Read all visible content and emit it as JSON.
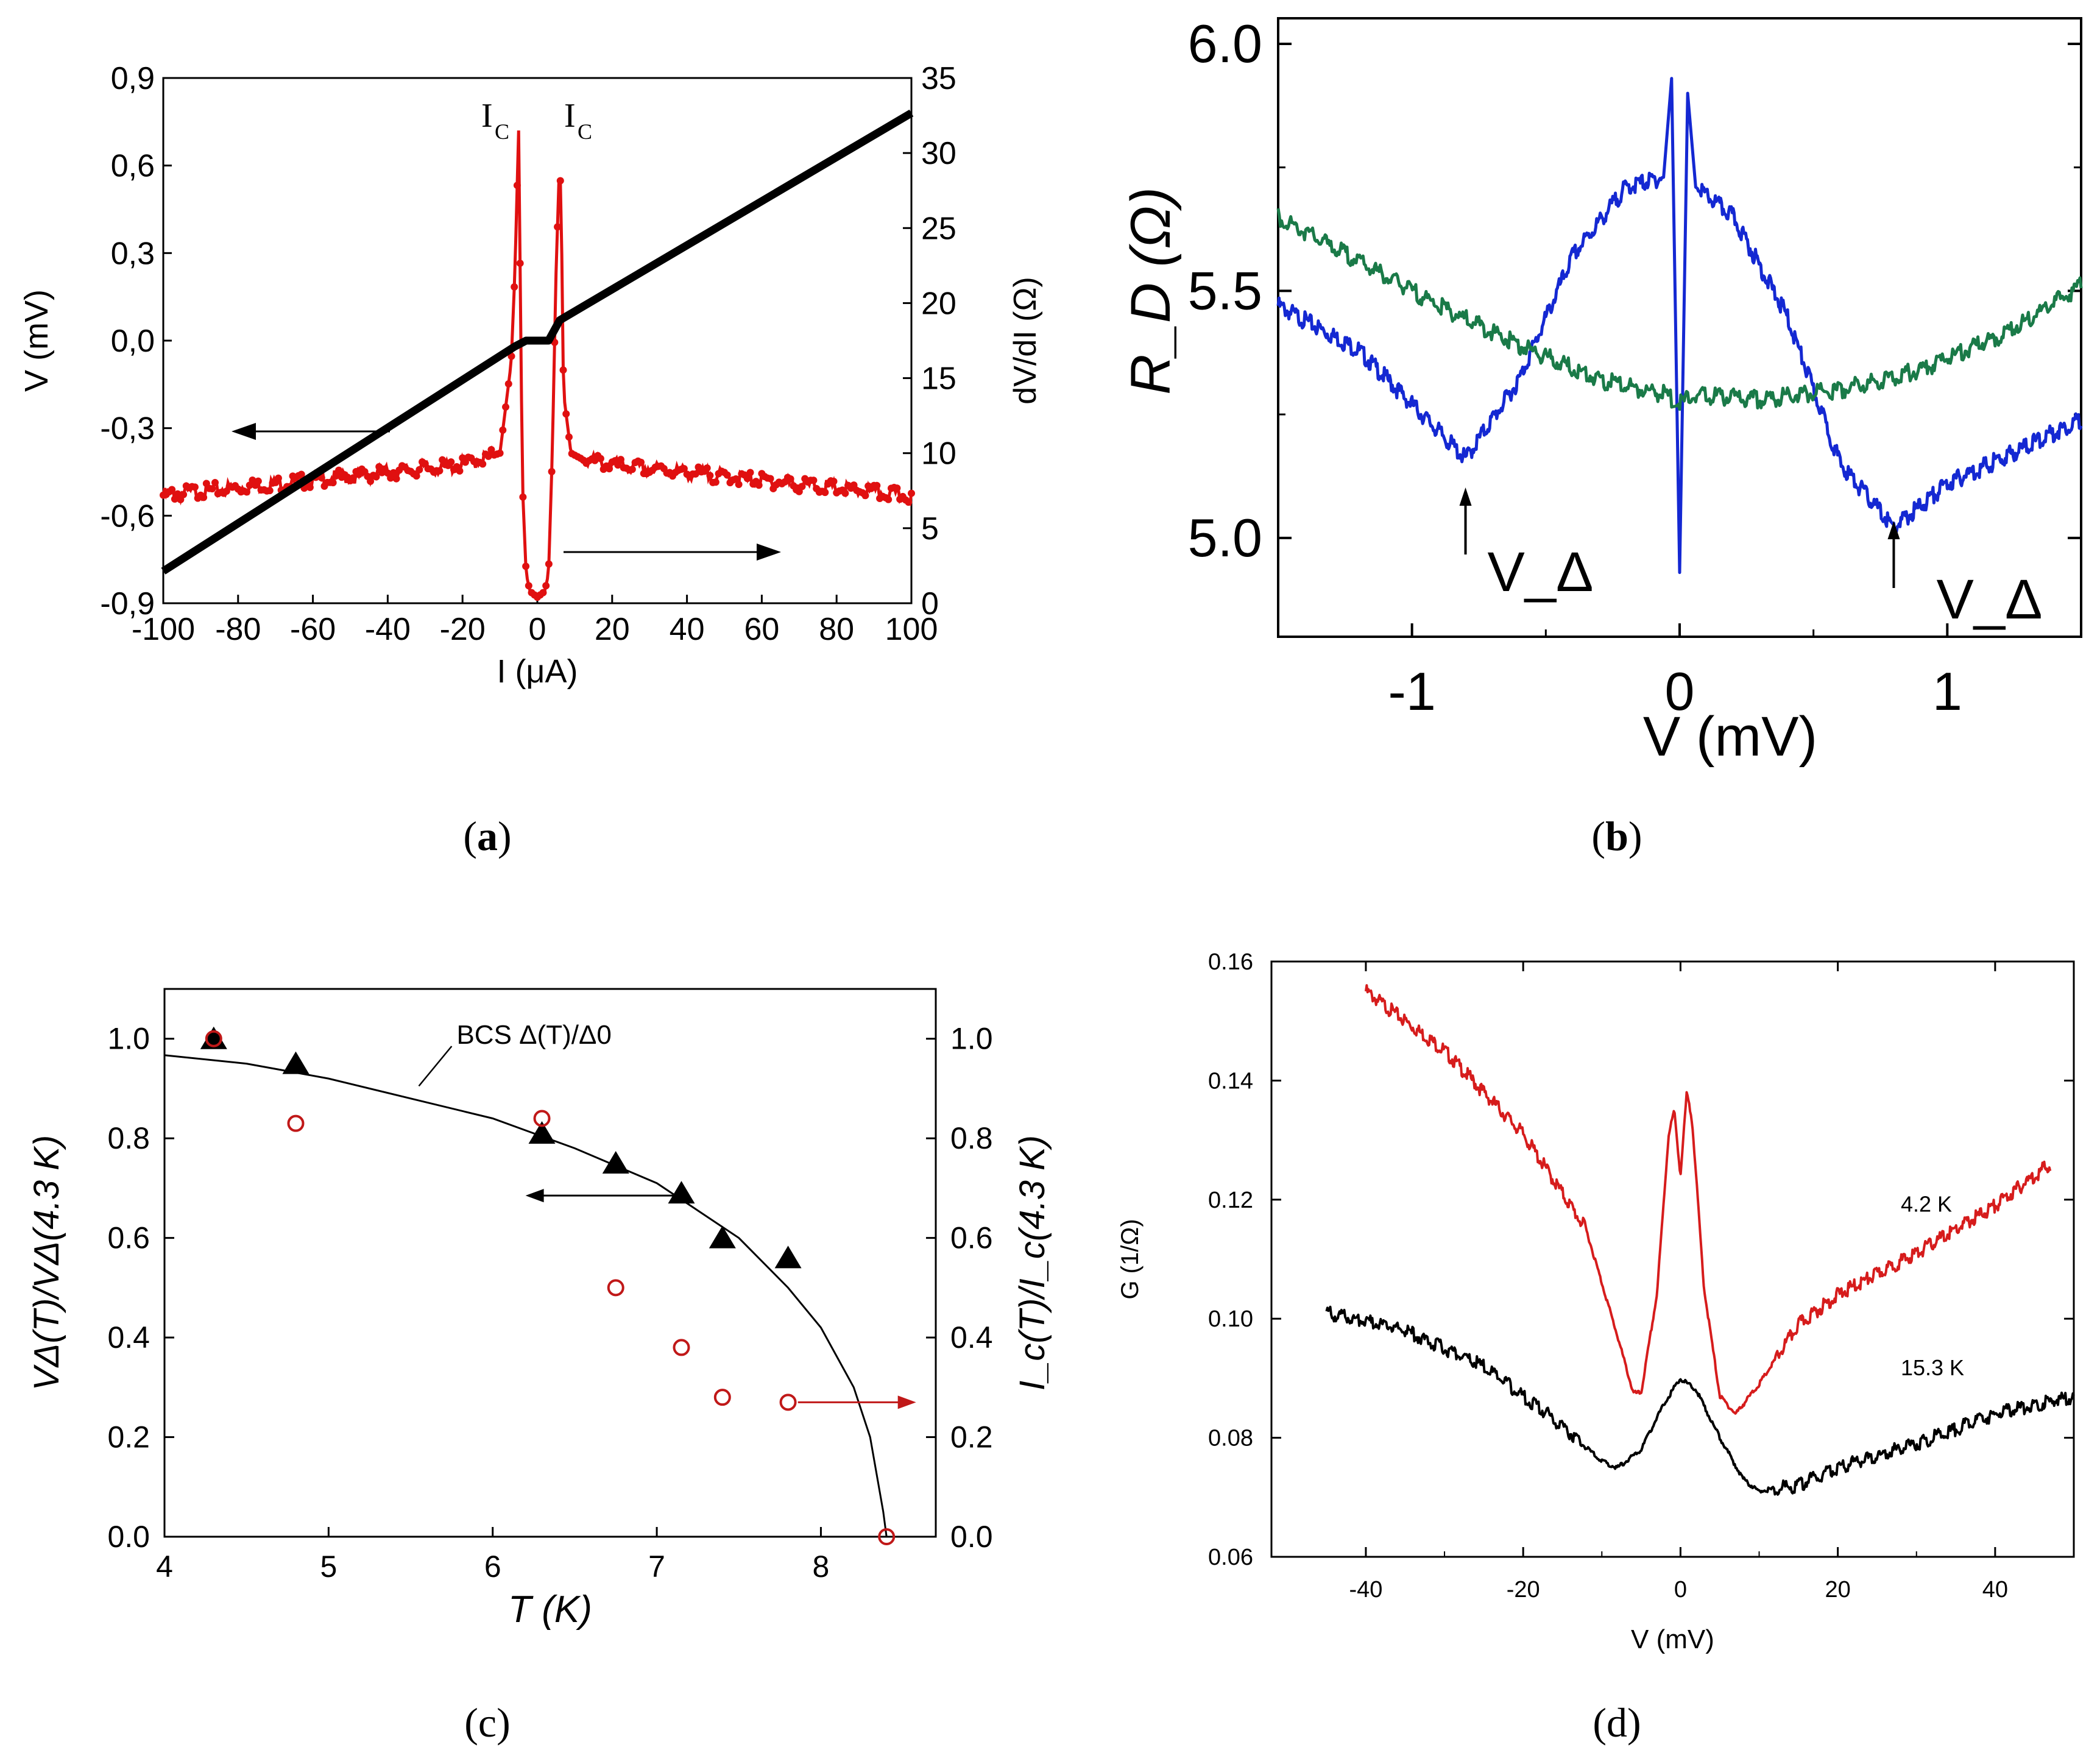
{
  "chart_data": [
    {
      "panel": "a",
      "panel_label": "a",
      "type": "line",
      "xlabel": "I (μA)",
      "ylabel_left": "V (mV)",
      "ylabel_right": "dV/dI (Ω)",
      "xlim": [
        -100,
        100
      ],
      "ylim_left": [
        -0.9,
        0.9
      ],
      "ylim_right": [
        0,
        35
      ],
      "x_ticks": [
        "-100",
        "-80",
        "-60",
        "-40",
        "-20",
        "0",
        "20",
        "40",
        "60",
        "80",
        "100"
      ],
      "y_left_ticks": [
        "-0,9",
        "-0,6",
        "-0,3",
        "0,0",
        "0,3",
        "0,6",
        "0,9"
      ],
      "y_right_ticks": [
        "0",
        "5",
        "10",
        "15",
        "20",
        "25",
        "30",
        "35"
      ],
      "annotations": [
        "I",
        "C",
        "I",
        "C"
      ],
      "series": [
        {
          "name": "V(I)",
          "axis": "left",
          "color": "#000000",
          "x": [
            -100,
            -6,
            -3,
            3,
            6,
            100
          ],
          "y": [
            -0.79,
            -0.02,
            0.0,
            0.0,
            0.07,
            0.78
          ]
        },
        {
          "name": "dV/dI",
          "axis": "right",
          "color": "#e01010",
          "x": [
            -100,
            -60,
            -20,
            -10,
            -7,
            -6,
            -5,
            -4.5,
            -4,
            -3,
            -2,
            0,
            2,
            3,
            4,
            5,
            6,
            6.5,
            7,
            9,
            12,
            20,
            60,
            100
          ],
          "y": [
            7.2,
            8.2,
            9.2,
            10,
            16,
            22,
            31.5,
            20,
            8,
            2,
            0.8,
            0.4,
            0.8,
            2,
            10,
            22,
            30,
            24,
            14,
            10,
            9.6,
            9.2,
            8.2,
            7.1
          ]
        }
      ]
    },
    {
      "panel": "b",
      "panel_label": "b",
      "type": "line",
      "xlabel": "V (mV)",
      "ylabel": "R_D (Ω)",
      "xlim": [
        -1.5,
        1.5
      ],
      "ylim": [
        4.8,
        6.0
      ],
      "x_ticks": [
        "-1",
        "0",
        "1"
      ],
      "y_ticks": [
        "5.0",
        "5.5",
        "6.0"
      ],
      "annotations": [
        "V_Δ",
        "V_Δ"
      ],
      "series": [
        {
          "name": "blue",
          "color": "#1428d2",
          "x": [
            -1.5,
            -1.2,
            -1.0,
            -0.8,
            -0.6,
            -0.4,
            -0.2,
            -0.06,
            -0.03,
            0.0,
            0.03,
            0.06,
            0.2,
            0.4,
            0.6,
            0.8,
            1.0,
            1.2,
            1.5
          ],
          "y": [
            5.47,
            5.38,
            5.27,
            5.16,
            5.32,
            5.57,
            5.71,
            5.73,
            5.93,
            4.93,
            5.9,
            5.71,
            5.65,
            5.45,
            5.15,
            5.02,
            5.11,
            5.16,
            5.24
          ]
        },
        {
          "name": "green",
          "color": "#1a7a48",
          "x": [
            -1.5,
            -1.2,
            -0.9,
            -0.6,
            -0.3,
            -0.05,
            0.0,
            0.05,
            0.3,
            0.6,
            0.9,
            1.2,
            1.5
          ],
          "y": [
            5.65,
            5.56,
            5.47,
            5.39,
            5.32,
            5.29,
            5.27,
            5.29,
            5.28,
            5.3,
            5.34,
            5.41,
            5.51
          ]
        }
      ]
    },
    {
      "panel": "c",
      "panel_label": "(c)",
      "type": "scatter",
      "xlabel": "T (K)",
      "ylabel_left": "VΔ(T)/VΔ(4.3 K)",
      "ylabel_right": "I_c(T)/I_c(4.3 K)",
      "xlim": [
        4,
        8.7
      ],
      "ylim": [
        0,
        1.1
      ],
      "x_ticks": [
        "4",
        "5",
        "6",
        "7",
        "8"
      ],
      "y_left_ticks": [
        "0.0",
        "0.2",
        "0.4",
        "0.6",
        "0.8",
        "1.0"
      ],
      "y_right_ticks": [
        "0.0",
        "0.2",
        "0.4",
        "0.6",
        "0.8",
        "1.0"
      ],
      "curve_label": "BCS Δ(T)/Δ0",
      "series": [
        {
          "name": "VΔ (triangles)",
          "color": "#000000",
          "x": [
            4.3,
            4.8,
            6.3,
            6.75,
            7.15,
            7.4,
            7.8
          ],
          "y": [
            1.0,
            0.95,
            0.81,
            0.75,
            0.69,
            0.6,
            0.56
          ]
        },
        {
          "name": "Ic (circles)",
          "color": "#c01818",
          "x": [
            4.3,
            4.8,
            6.3,
            6.75,
            7.15,
            7.4,
            7.8,
            8.4
          ],
          "y": [
            1.0,
            0.83,
            0.84,
            0.5,
            0.38,
            0.28,
            0.27,
            0.0
          ]
        },
        {
          "name": "BCS",
          "color": "#000000",
          "x": [
            4.0,
            4.5,
            5.0,
            5.5,
            6.0,
            6.5,
            7.0,
            7.5,
            7.8,
            8.0,
            8.2,
            8.3,
            8.38,
            8.4
          ],
          "y": [
            0.967,
            0.95,
            0.92,
            0.88,
            0.84,
            0.78,
            0.71,
            0.6,
            0.5,
            0.42,
            0.3,
            0.2,
            0.05,
            0.0
          ]
        }
      ]
    },
    {
      "panel": "d",
      "panel_label": "(d)",
      "type": "line",
      "xlabel": "V  (mV)",
      "ylabel": "G (1/Ω)",
      "xlim": [
        -52,
        50
      ],
      "ylim": [
        0.06,
        0.16
      ],
      "x_ticks": [
        "-40",
        "-20",
        "0",
        "20",
        "40"
      ],
      "y_ticks": [
        "0.06",
        "0.08",
        "0.10",
        "0.12",
        "0.14",
        "0.16"
      ],
      "series": [
        {
          "name": "4.2 K",
          "color": "#d61c1c",
          "x": [
            -40,
            -30,
            -20,
            -12,
            -8,
            -6,
            -5,
            -3,
            -1.5,
            -0.8,
            0,
            0.8,
            1.5,
            3,
            5,
            7,
            10,
            15,
            20,
            30,
            40,
            47
          ],
          "y": [
            0.155,
            0.145,
            0.131,
            0.115,
            0.097,
            0.0875,
            0.0875,
            0.104,
            0.131,
            0.135,
            0.124,
            0.138,
            0.133,
            0.105,
            0.087,
            0.084,
            0.089,
            0.099,
            0.104,
            0.111,
            0.119,
            0.126
          ]
        },
        {
          "name": "15.3 K",
          "color": "#000000",
          "x": [
            -45,
            -35,
            -25,
            -15,
            -10,
            -8,
            -5,
            -2,
            0,
            2,
            5,
            8,
            10,
            15,
            20,
            30,
            40,
            50
          ],
          "y": [
            0.101,
            0.098,
            0.092,
            0.082,
            0.076,
            0.075,
            0.078,
            0.086,
            0.09,
            0.088,
            0.08,
            0.073,
            0.071,
            0.072,
            0.075,
            0.079,
            0.084,
            0.087
          ]
        }
      ],
      "annotations": [
        "4.2 K",
        "15.3 K"
      ]
    }
  ]
}
